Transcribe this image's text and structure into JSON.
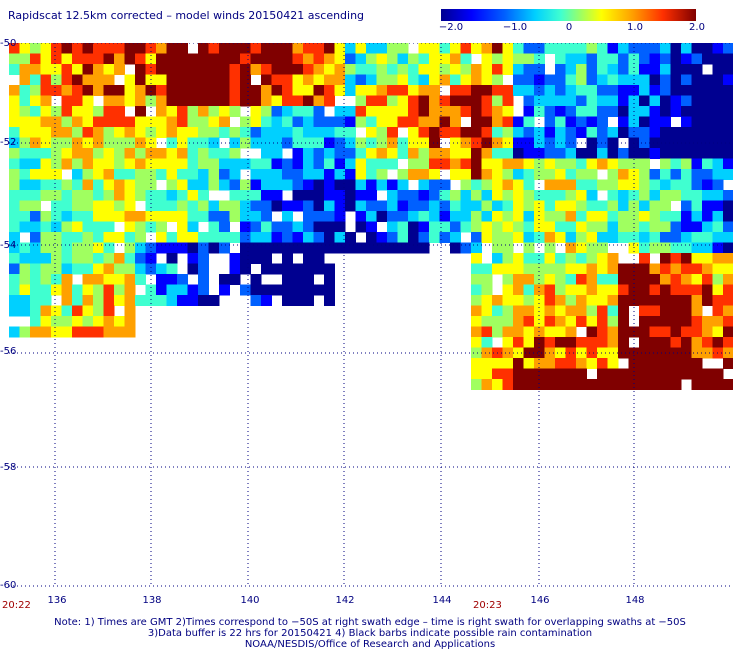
{
  "title": "Rapidscat 12.5km corrected – model winds 20150421 ascending",
  "colorbar": {
    "labels": [
      "−2.0",
      "−1.0",
      "0",
      "1.0",
      "2.0"
    ],
    "min": -2.0,
    "max": 2.0,
    "colors": [
      "#000090",
      "#0000ff",
      "#0060ff",
      "#00d0ff",
      "#40ffd0",
      "#a0ff60",
      "#ffff00",
      "#ffa000",
      "#ff3000",
      "#800000"
    ]
  },
  "map": {
    "lat_labels": [
      "-50",
      "-52",
      "-54",
      "-56",
      "-58",
      "-60"
    ],
    "lon_labels": [
      "136",
      "138",
      "140",
      "142",
      "144",
      "146",
      "148"
    ],
    "time_labels": [
      "20:22",
      "20:23"
    ],
    "lat_range": [
      -60,
      -50
    ],
    "lon_range": [
      135,
      150
    ]
  },
  "notes": {
    "line1": "Note: 1) Times are GMT 2)Times correspond to −50S at right swath edge – time is right swath for overlapping swaths at −50S",
    "line2": "3)Data buffer is 22 hrs for 20150421 4) Black barbs indicate possible rain contamination",
    "line3": "NOAA/NESDIS/Office of Research and Applications"
  }
}
